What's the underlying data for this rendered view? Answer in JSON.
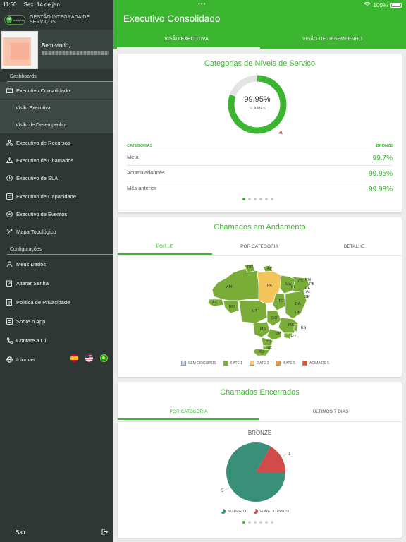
{
  "status": {
    "time": "11:50",
    "date": "Sex. 14 de jan.",
    "wifi_icon": "wifi-icon",
    "battery": "100%"
  },
  "brand": {
    "logo_text": "oi",
    "logo_word": "soluções",
    "title": "GESTÃO INTEGRADA DE SERVIÇOS"
  },
  "profile": {
    "welcome": "Bem-vindo,"
  },
  "sidebar": {
    "dashboards_label": "Dashboards",
    "items": [
      {
        "label": "Executivo Consolidado",
        "icon": "briefcase-icon"
      },
      {
        "label": "Visão Executiva"
      },
      {
        "label": "Visão de Desempenho"
      },
      {
        "label": "Executivo de Recursos",
        "icon": "hierarchy-icon"
      },
      {
        "label": "Executivo de Chamados",
        "icon": "warning-icon"
      },
      {
        "label": "Executivo de SLA",
        "icon": "clock-icon"
      },
      {
        "label": "Executivo de Capacidade",
        "icon": "server-icon"
      },
      {
        "label": "Executivo de Eventos",
        "icon": "events-icon"
      },
      {
        "label": "Mapa Topológico",
        "icon": "map-pin-icon"
      }
    ],
    "config_label": "Configurações",
    "config_items": [
      {
        "label": "Meus Dados",
        "icon": "user-icon"
      },
      {
        "label": "Alterar Senha",
        "icon": "edit-icon"
      },
      {
        "label": "Política de Privacidade",
        "icon": "document-icon"
      },
      {
        "label": "Sobre o App",
        "icon": "info-icon"
      },
      {
        "label": "Contate a Oi",
        "icon": "phone-icon"
      },
      {
        "label": "Idiomas",
        "icon": "globe-icon"
      }
    ],
    "logout": "Sair"
  },
  "header": {
    "title": "Executivo Consolidado",
    "tabs": [
      {
        "label": "VISÃO EXECUTIVA"
      },
      {
        "label": "VISÃO DE DESEMPENHO"
      }
    ]
  },
  "sla_card": {
    "title": "Categorias de Níveis de Serviço",
    "gauge_value": "99,95%",
    "gauge_sub": "SLA MÊS",
    "gauge_fraction": 0.9995,
    "col_left": "CATEGORIAS",
    "col_right": "BRONZE",
    "rows": [
      {
        "label": "Meta",
        "value": "99.7%"
      },
      {
        "label": "Acumulado/mês",
        "value": "99.95%"
      },
      {
        "label": "Mês anterior",
        "value": "99.98%"
      }
    ]
  },
  "chamados_andamento": {
    "title": "Chamados em Andamento",
    "tabs": [
      {
        "label": "POR UF"
      },
      {
        "label": "POR CATEGORIA"
      },
      {
        "label": "DETALHE"
      }
    ],
    "states": [
      "RR",
      "AP",
      "AM",
      "PA",
      "MA",
      "CE",
      "RN",
      "PB",
      "PE",
      "AL",
      "SE",
      "PI",
      "AC",
      "RO",
      "TO",
      "BA",
      "MT",
      "DF",
      "GO",
      "MG",
      "ES",
      "MS",
      "SP",
      "RJ",
      "PR",
      "SC",
      "RS"
    ],
    "legend": [
      {
        "label": "SEM CIRCUITOS",
        "color": "#c9d6e8"
      },
      {
        "label": "0 ATÉ 1",
        "color": "#7aad38"
      },
      {
        "label": "2 ATÉ 3",
        "color": "#f2c45a"
      },
      {
        "label": "4 ATÉ 5",
        "color": "#ef9a3c"
      },
      {
        "label": "ACIMA DE 5",
        "color": "#e0522b"
      }
    ]
  },
  "chamados_encerrados": {
    "title": "Chamados Encerrados",
    "tabs": [
      {
        "label": "POR CATEGORIA"
      },
      {
        "label": "ÚLTIMOS 7 DIAS"
      }
    ],
    "chart_data": {
      "type": "pie",
      "title": "BRONZE",
      "categories": [
        "NO PRAZO",
        "FORA DO PRAZO"
      ],
      "values": [
        5,
        1
      ],
      "colors": [
        "#3a8f78",
        "#d24b4b"
      ]
    }
  }
}
